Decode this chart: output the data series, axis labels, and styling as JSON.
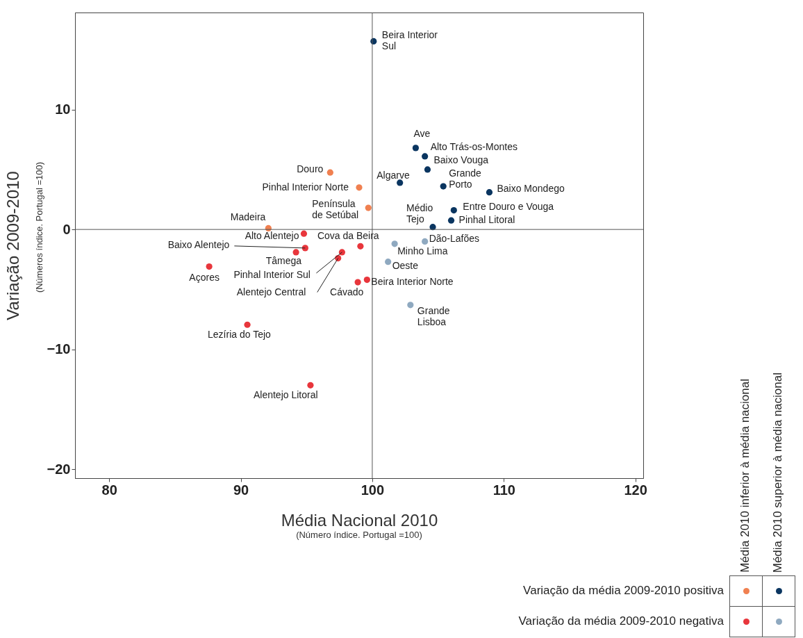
{
  "chart_data": {
    "type": "scatter",
    "xlabel": "Média Nacional 2010",
    "ylabel": "Variação 2009-2010",
    "xlim": [
      77.4,
      120.6
    ],
    "ylim": [
      -20.75,
      18.1
    ],
    "xticks": [
      80,
      90,
      100,
      110,
      120
    ],
    "yticks": [
      -20,
      -10,
      0,
      10
    ],
    "marker": "circle",
    "ref_lines": [
      {
        "axis": "x",
        "value": 100
      },
      {
        "axis": "y",
        "value": 0
      }
    ],
    "series": [
      {
        "color": "#f08050",
        "x": [
          96.8,
          99.0,
          99.7,
          92.1
        ],
        "values": [
          4.75,
          3.5,
          1.8,
          0.1
        ]
      },
      {
        "color": "#0a3560",
        "x": [
          100.1,
          103.3,
          104.0,
          104.2,
          102.1,
          105.4,
          108.9,
          106.2,
          106.0,
          104.6
        ],
        "values": [
          15.7,
          6.8,
          6.1,
          5.0,
          3.9,
          3.6,
          3.1,
          1.6,
          0.75,
          0.2
        ]
      },
      {
        "color": "#e8363c",
        "x": [
          94.8,
          94.9,
          94.2,
          87.6,
          99.1,
          97.7,
          97.4,
          98.9,
          99.6,
          90.5,
          95.3
        ],
        "values": [
          -0.35,
          -1.55,
          -1.9,
          -3.1,
          -1.4,
          -1.9,
          -2.4,
          -4.4,
          -4.2,
          -7.95,
          -13.0
        ]
      },
      {
        "color": "#8fa9c0",
        "x": [
          104.0,
          101.7,
          101.2,
          102.9
        ],
        "values": [
          -1.0,
          -1.2,
          -2.7,
          -6.3
        ]
      }
    ],
    "annotations": [
      "(Número índice. Portugal =100)",
      "(Números índice. Portugal =100)",
      "Média 2010 inferior à média nacional",
      "Média 2010 superior à média nacional",
      "Variação da média 2009-2010 positiva",
      "Variação da média 2009-2010 negativa",
      {
        "text": "Douro",
        "x": 96.8,
        "y": 4.75
      },
      {
        "text": "Pinhal Interior Norte",
        "x": 99.0,
        "y": 3.5
      },
      {
        "text": "Península\nde Setúbal",
        "x": 99.7,
        "y": 1.8
      },
      {
        "text": "Madeira",
        "x": 92.1,
        "y": 0.1
      },
      {
        "text": "Beira Interior\nSul",
        "x": 100.1,
        "y": 15.7
      },
      {
        "text": "Ave",
        "x": 103.3,
        "y": 6.8
      },
      {
        "text": "Alto Trás-os-Montes",
        "x": 104.0,
        "y": 6.1
      },
      {
        "text": "Baixo Vouga",
        "x": 104.2,
        "y": 5.0
      },
      {
        "text": "Algarve",
        "x": 102.1,
        "y": 3.9
      },
      {
        "text": "Grande\nPorto",
        "x": 105.4,
        "y": 3.6
      },
      {
        "text": "Baixo Mondego",
        "x": 108.9,
        "y": 3.1
      },
      {
        "text": "Entre Douro e Vouga",
        "x": 106.2,
        "y": 1.6
      },
      {
        "text": "Pinhal Litoral",
        "x": 106.0,
        "y": 0.75
      },
      {
        "text": "Médio\nTejo",
        "x": 104.6,
        "y": 0.2
      },
      {
        "text": "Alto Alentejo",
        "x": 94.8,
        "y": -0.35
      },
      {
        "text": "Baixo Alentejo",
        "x": 94.9,
        "y": -1.55
      },
      {
        "text": "Tâmega",
        "x": 94.2,
        "y": -1.9
      },
      {
        "text": "Açores",
        "x": 87.6,
        "y": -3.1
      },
      {
        "text": "Cova da Beira",
        "x": 99.1,
        "y": -1.4
      },
      {
        "text": "Pinhal Interior Sul",
        "x": 97.7,
        "y": -1.9
      },
      {
        "text": "Alentejo Central",
        "x": 97.4,
        "y": -2.4
      },
      {
        "text": "Cávado",
        "x": 98.9,
        "y": -4.4
      },
      {
        "text": "Beira Interior Norte",
        "x": 99.6,
        "y": -4.2
      },
      {
        "text": "Lezíria do Tejo",
        "x": 90.5,
        "y": -7.95
      },
      {
        "text": "Alentejo Litoral",
        "x": 95.3,
        "y": -13.0
      },
      {
        "text": "Dão-Lafões",
        "x": 104.0,
        "y": -1.0
      },
      {
        "text": "Minho Lima",
        "x": 101.7,
        "y": -1.2
      },
      {
        "text": "Oeste",
        "x": 101.2,
        "y": -2.7
      },
      {
        "text": "Grande\nLisboa",
        "x": 102.9,
        "y": -6.3
      }
    ]
  }
}
